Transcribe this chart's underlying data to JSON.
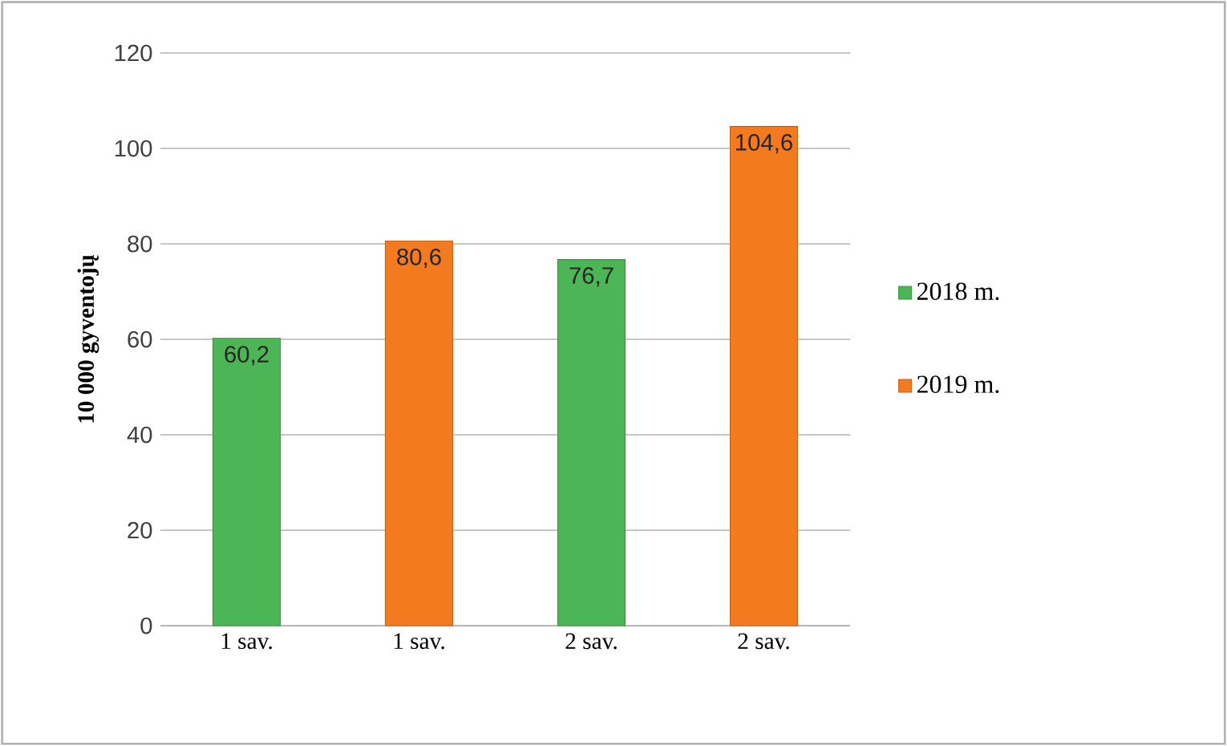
{
  "chart_data": {
    "type": "bar",
    "ylabel": "10 000 gyventojų",
    "categories": [
      "1 sav.",
      "1 sav.",
      "2 sav.",
      "2 sav."
    ],
    "series": [
      {
        "name": "2018 m.",
        "color": "#4cb556",
        "values": [
          60.2,
          null,
          76.7,
          null
        ],
        "value_labels": [
          "60,2",
          null,
          "76,7",
          null
        ]
      },
      {
        "name": "2019 m.",
        "color": "#f47a20",
        "values": [
          null,
          80.6,
          null,
          104.6
        ],
        "value_labels": [
          null,
          "80,6",
          null,
          "104,6"
        ]
      }
    ],
    "ylim": [
      0,
      120
    ],
    "yticks": [
      0,
      20,
      40,
      60,
      80,
      100,
      120
    ],
    "grid": "y",
    "legend": "right"
  }
}
